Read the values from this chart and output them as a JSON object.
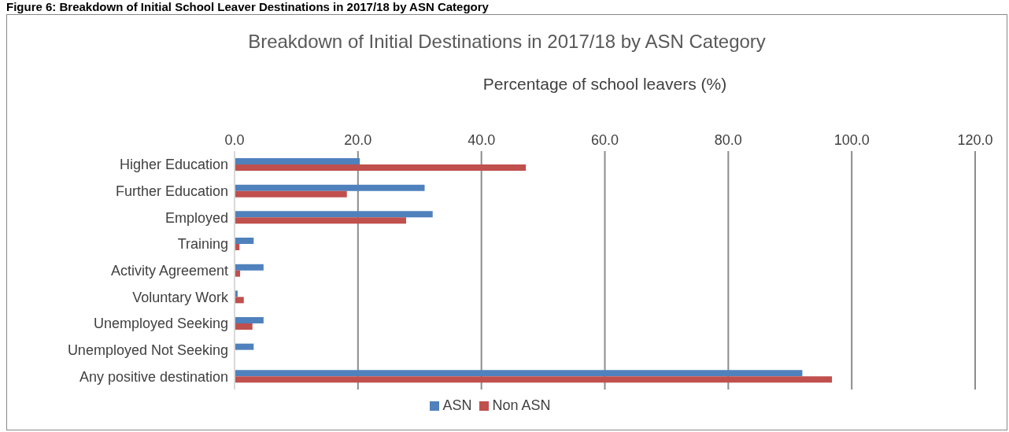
{
  "chart_data": {
    "type": "bar",
    "orientation": "horizontal",
    "title": "Breakdown of Initial Destinations in 2017/18 by ASN Category",
    "xlabel": "Percentage of school leavers (%)",
    "annotations": [
      "Figure 6: Breakdown of Initial School Leaver Destinations in 2017/18 by ASN Category"
    ],
    "categories": [
      "Higher Education",
      "Further Education",
      "Employed",
      "Training",
      "Activity Agreement",
      "Voluntary Work",
      "Unemployed Seeking",
      "Unemployed Not Seeking",
      "Any positive destination"
    ],
    "series": [
      {
        "name": "ASN",
        "color": "#4f81bd",
        "values": [
          20.3,
          30.8,
          32.1,
          3.1,
          4.7,
          0.5,
          4.7,
          3.1,
          92.0
        ]
      },
      {
        "name": "Non ASN",
        "color": "#c0504d",
        "values": [
          47.2,
          18.2,
          27.8,
          0.8,
          0.9,
          1.5,
          2.9,
          null,
          96.8
        ]
      }
    ],
    "xlim": [
      0,
      120
    ],
    "xticks": [
      {
        "value": 0,
        "label": "0.0"
      },
      {
        "value": 20,
        "label": "20.0"
      },
      {
        "value": 40,
        "label": "40.0"
      },
      {
        "value": 60,
        "label": "60.0"
      },
      {
        "value": 80,
        "label": "80.0"
      },
      {
        "value": 100,
        "label": "100.0"
      },
      {
        "value": 120,
        "label": "120.0"
      }
    ],
    "grid": "x",
    "legend": "bottom"
  }
}
